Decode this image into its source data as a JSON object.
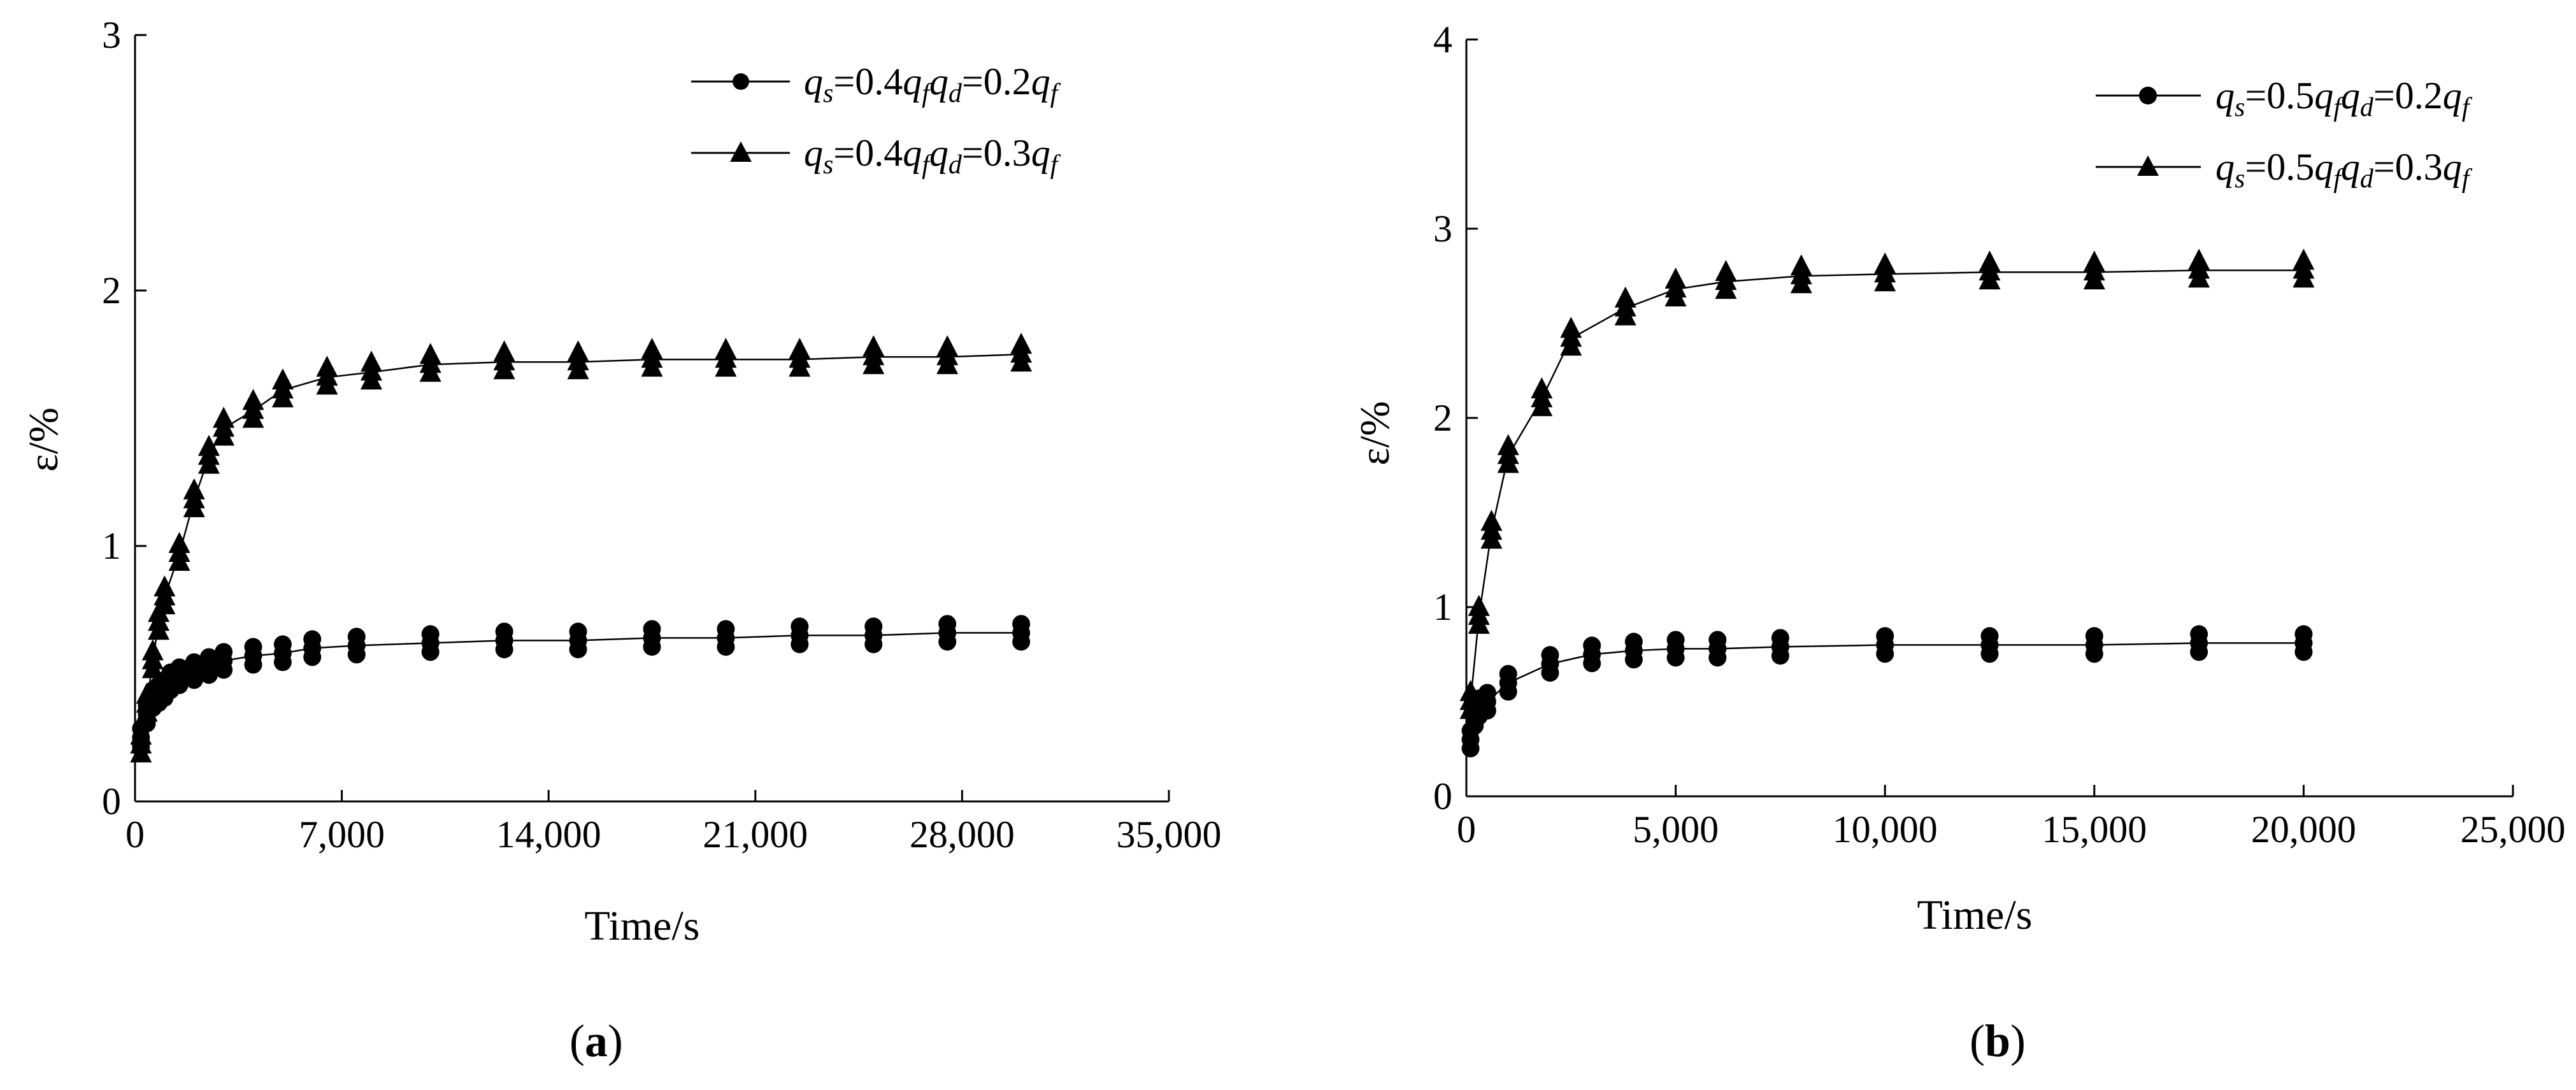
{
  "chart_data": [
    {
      "type": "scatter",
      "panel_label": "a",
      "xlabel": "Time/s",
      "ylabel": "ε/%",
      "xlim": [
        0,
        35000
      ],
      "ylim": [
        0,
        3
      ],
      "xticks": [
        0,
        7000,
        14000,
        21000,
        28000,
        35000
      ],
      "xtick_labels": [
        "0",
        "7,000",
        "14,000",
        "21,000",
        "28,000",
        "35,000"
      ],
      "yticks": [
        0,
        1,
        2,
        3
      ],
      "ytick_labels": [
        "0",
        "1",
        "2",
        "3"
      ],
      "legend_position": "top-right",
      "series": [
        {
          "name": "qs=0.4qf,qd=0.2qf",
          "legend": {
            "q1": "q",
            "s1": "s",
            "mid1": "=0.4",
            "q2": "q",
            "s2": "f",
            "q3": "q",
            "s3": "d",
            "mid2": "=0.2",
            "q4": "q",
            "s4": "f"
          },
          "marker": "circle",
          "x": [
            200,
            400,
            600,
            800,
            1000,
            1200,
            1500,
            2000,
            2500,
            3000,
            4000,
            5000,
            6000,
            7500,
            10000,
            12500,
            15000,
            17500,
            20000,
            22500,
            25000,
            27500,
            30000
          ],
          "y": [
            0.25,
            0.34,
            0.4,
            0.42,
            0.44,
            0.47,
            0.49,
            0.51,
            0.53,
            0.55,
            0.57,
            0.58,
            0.6,
            0.61,
            0.62,
            0.63,
            0.63,
            0.64,
            0.64,
            0.65,
            0.65,
            0.66,
            0.66
          ]
        },
        {
          "name": "qs=0.4qf,qd=0.3qf",
          "legend": {
            "q1": "q",
            "s1": "s",
            "mid1": "=0.4",
            "q2": "q",
            "s2": "f",
            "q3": "q",
            "s3": "d",
            "mid2": "=0.3",
            "q4": "q",
            "s4": "f"
          },
          "marker": "triangle",
          "x": [
            200,
            400,
            600,
            800,
            1000,
            1500,
            2000,
            2500,
            3000,
            4000,
            5000,
            6500,
            8000,
            10000,
            12500,
            15000,
            17500,
            20000,
            22500,
            25000,
            27500,
            30000
          ],
          "y": [
            0.22,
            0.38,
            0.55,
            0.7,
            0.8,
            0.97,
            1.18,
            1.35,
            1.46,
            1.53,
            1.61,
            1.66,
            1.68,
            1.71,
            1.72,
            1.72,
            1.73,
            1.73,
            1.73,
            1.74,
            1.74,
            1.75
          ]
        }
      ]
    },
    {
      "type": "scatter",
      "panel_label": "b",
      "xlabel": "Time/s",
      "ylabel": "ε/%",
      "xlim": [
        0,
        25000
      ],
      "ylim": [
        0,
        4
      ],
      "xticks": [
        0,
        5000,
        10000,
        15000,
        20000,
        25000
      ],
      "xtick_labels": [
        "0",
        "5,000",
        "10,000",
        "15,000",
        "20,000",
        "25,000"
      ],
      "yticks": [
        0,
        1,
        2,
        3,
        4
      ],
      "ytick_labels": [
        "0",
        "1",
        "2",
        "3",
        "4"
      ],
      "legend_position": "top-right",
      "series": [
        {
          "name": "qs=0.5qf,qd=0.2qf",
          "legend": {
            "q1": "q",
            "s1": "s",
            "mid1": "=0.5",
            "q2": "q",
            "s2": "f",
            "q3": "q",
            "s3": "d",
            "mid2": "=0.2",
            "q4": "q",
            "s4": "f"
          },
          "marker": "circle",
          "x": [
            100,
            200,
            300,
            500,
            1000,
            2000,
            3000,
            4000,
            5000,
            6000,
            7500,
            10000,
            12500,
            15000,
            17500,
            20000
          ],
          "y": [
            0.3,
            0.42,
            0.47,
            0.5,
            0.6,
            0.7,
            0.75,
            0.77,
            0.78,
            0.78,
            0.79,
            0.8,
            0.8,
            0.8,
            0.81,
            0.81
          ]
        },
        {
          "name": "qs=0.5qf,qd=0.3qf",
          "legend": {
            "q1": "q",
            "s1": "s",
            "mid1": "=0.5",
            "q2": "q",
            "s2": "f",
            "q3": "q",
            "s3": "d",
            "mid2": "=0.3",
            "q4": "q",
            "s4": "f"
          },
          "marker": "triangle",
          "x": [
            100,
            300,
            600,
            1000,
            1800,
            2500,
            3800,
            5000,
            6200,
            8000,
            10000,
            12500,
            15000,
            17500,
            20000
          ],
          "y": [
            0.5,
            0.95,
            1.4,
            1.8,
            2.1,
            2.42,
            2.58,
            2.68,
            2.72,
            2.75,
            2.76,
            2.77,
            2.77,
            2.78,
            2.78
          ]
        }
      ]
    }
  ]
}
